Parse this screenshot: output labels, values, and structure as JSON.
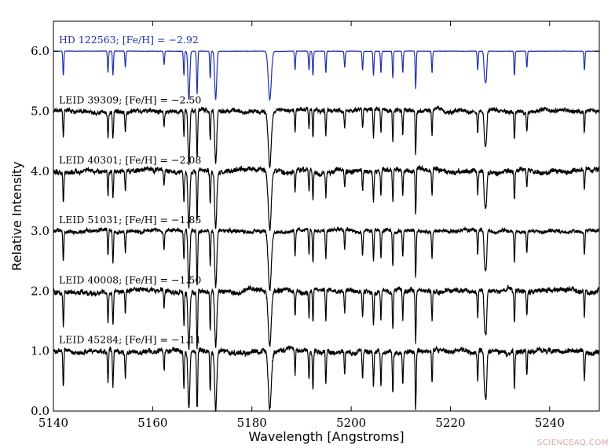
{
  "chart_data": {
    "type": "line",
    "title": "",
    "xlabel": "Wavelength [Angstroms]",
    "ylabel": "Relative Intensity",
    "xlim": [
      5140,
      5250
    ],
    "ylim": [
      0.0,
      6.5
    ],
    "xticks": [
      5140,
      5160,
      5180,
      5200,
      5220,
      5240
    ],
    "xtick_labels": [
      "5140",
      "5160",
      "5180",
      "5200",
      "5220",
      "5240"
    ],
    "yticks": [
      0,
      1,
      2,
      3,
      4,
      5,
      6
    ],
    "ytick_labels": [
      "0.0",
      "1.0",
      "2.0",
      "3.0",
      "4.0",
      "5.0",
      "6.0"
    ],
    "grid": false,
    "legend": "none",
    "lines": [
      {
        "center": 5142.0,
        "depth": 0.45,
        "width": 0.1
      },
      {
        "center": 5151.0,
        "depth": 0.4,
        "width": 0.1
      },
      {
        "center": 5152.0,
        "depth": 0.45,
        "width": 0.1
      },
      {
        "center": 5154.5,
        "depth": 0.3,
        "width": 0.1
      },
      {
        "center": 5162.3,
        "depth": 0.25,
        "width": 0.1
      },
      {
        "center": 5166.3,
        "depth": 0.45,
        "width": 0.1
      },
      {
        "center": 5167.3,
        "depth": 0.9,
        "width": 0.18
      },
      {
        "center": 5168.9,
        "depth": 0.4,
        "width": 0.1
      },
      {
        "center": 5169.0,
        "depth": 0.5,
        "width": 0.1
      },
      {
        "center": 5171.6,
        "depth": 0.5,
        "width": 0.1
      },
      {
        "center": 5172.7,
        "depth": 0.9,
        "width": 0.2
      },
      {
        "center": 5183.6,
        "depth": 0.9,
        "width": 0.3
      },
      {
        "center": 5188.7,
        "depth": 0.35,
        "width": 0.1
      },
      {
        "center": 5191.5,
        "depth": 0.35,
        "width": 0.1
      },
      {
        "center": 5192.3,
        "depth": 0.45,
        "width": 0.1
      },
      {
        "center": 5194.9,
        "depth": 0.4,
        "width": 0.1
      },
      {
        "center": 5198.7,
        "depth": 0.3,
        "width": 0.1
      },
      {
        "center": 5202.3,
        "depth": 0.35,
        "width": 0.1
      },
      {
        "center": 5204.5,
        "depth": 0.45,
        "width": 0.1
      },
      {
        "center": 5206.0,
        "depth": 0.4,
        "width": 0.1
      },
      {
        "center": 5208.4,
        "depth": 0.5,
        "width": 0.1
      },
      {
        "center": 5210.4,
        "depth": 0.4,
        "width": 0.1
      },
      {
        "center": 5213.0,
        "depth": 0.7,
        "width": 0.1
      },
      {
        "center": 5216.3,
        "depth": 0.4,
        "width": 0.1
      },
      {
        "center": 5225.5,
        "depth": 0.35,
        "width": 0.1
      },
      {
        "center": 5226.9,
        "depth": 0.45,
        "width": 0.15
      },
      {
        "center": 5227.2,
        "depth": 0.5,
        "width": 0.15
      },
      {
        "center": 5232.9,
        "depth": 0.45,
        "width": 0.1
      },
      {
        "center": 5235.4,
        "depth": 0.3,
        "width": 0.1
      },
      {
        "center": 5247.0,
        "depth": 0.35,
        "width": 0.1
      }
    ],
    "series": [
      {
        "label": "HD 122563; [Fe/H] = −2.92",
        "offset": 6.0,
        "strength": 0.9,
        "noise": 0.002,
        "color": "#1f2fa8"
      },
      {
        "label": "LEID 39309; [Fe/H] = −2.50",
        "offset": 5.0,
        "strength": 1.0,
        "noise": 0.03,
        "color": "#000000"
      },
      {
        "label": "LEID 40301; [Fe/H] = −2.08",
        "offset": 4.0,
        "strength": 1.05,
        "noise": 0.035,
        "color": "#000000"
      },
      {
        "label": "LEID 51031; [Fe/H] = −1.85",
        "offset": 3.0,
        "strength": 1.15,
        "noise": 0.025,
        "color": "#000000"
      },
      {
        "label": "LEID 40008; [Fe/H] = −1.50",
        "offset": 2.0,
        "strength": 1.25,
        "noise": 0.035,
        "color": "#000000"
      },
      {
        "label": "LEID 45284; [Fe/H] = −1.11",
        "offset": 1.0,
        "strength": 1.35,
        "noise": 0.035,
        "color": "#000000"
      }
    ]
  },
  "watermark": "SCIENCEAQ.COM"
}
